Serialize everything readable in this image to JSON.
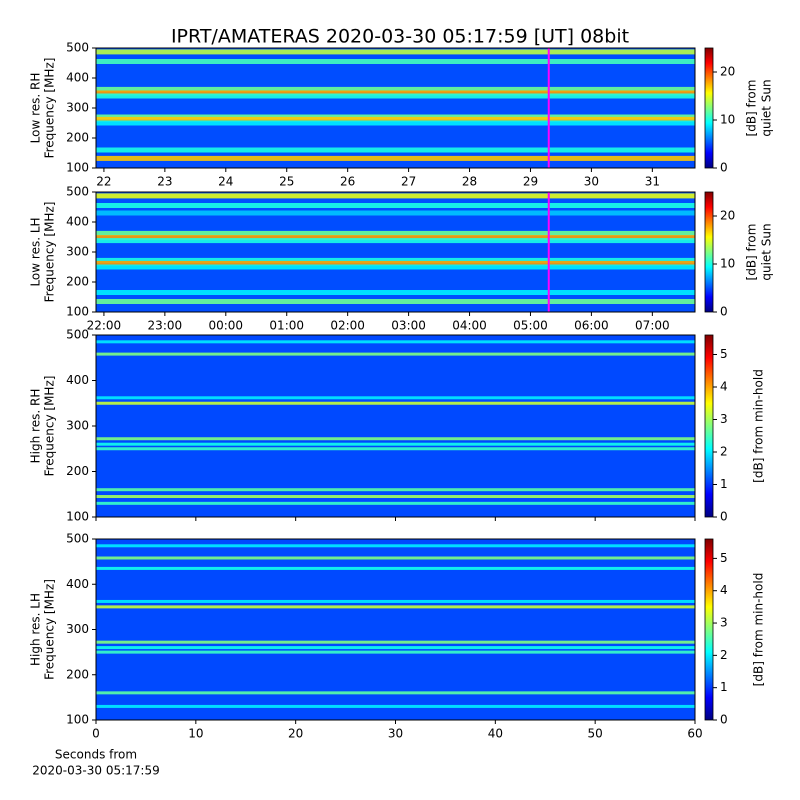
{
  "title": "IPRT/AMATERAS 2020-03-30 05:17:59 [UT]   08bit",
  "chart_data": [
    {
      "type": "heatmap",
      "ylabel": [
        "Low res. RH",
        "Frequency [MHz]"
      ],
      "colorbar_label": [
        "[dB] from",
        "quiet Sun"
      ],
      "xlim": [
        21.87,
        31.7
      ],
      "xticks": [
        22,
        23,
        24,
        25,
        26,
        27,
        28,
        29,
        30,
        31
      ],
      "ylim": [
        100,
        500
      ],
      "yticks": [
        100,
        200,
        300,
        400,
        500
      ],
      "clim": [
        0,
        25
      ],
      "cticks": [
        0,
        10,
        20
      ],
      "background": 5,
      "marker_x": 29.3,
      "marker_color": "#ff00ff",
      "bands": [
        {
          "freq": 487,
          "value": 14
        },
        {
          "freq": 455,
          "value": 11
        },
        {
          "freq": 362,
          "value": 12
        },
        {
          "freq": 350,
          "value": 18
        },
        {
          "freq": 340,
          "value": 10
        },
        {
          "freq": 270,
          "value": 12
        },
        {
          "freq": 262,
          "value": 17
        },
        {
          "freq": 250,
          "value": 9
        },
        {
          "freq": 160,
          "value": 10
        },
        {
          "freq": 132,
          "value": 17
        }
      ]
    },
    {
      "type": "heatmap",
      "ylabel": [
        "Low res. LH",
        "Frequency [MHz]"
      ],
      "colorbar_label": [
        "[dB] from",
        "quiet Sun"
      ],
      "xlim": [
        21.87,
        31.7
      ],
      "xticks": [
        {
          "value": 22,
          "label": "22:00"
        },
        {
          "value": 23,
          "label": "23:00"
        },
        {
          "value": 24,
          "label": "00:00"
        },
        {
          "value": 25,
          "label": "01:00"
        },
        {
          "value": 26,
          "label": "02:00"
        },
        {
          "value": 27,
          "label": "03:00"
        },
        {
          "value": 28,
          "label": "04:00"
        },
        {
          "value": 29,
          "label": "05:00"
        },
        {
          "value": 30,
          "label": "06:00"
        },
        {
          "value": 31,
          "label": "07:00"
        }
      ],
      "ylim": [
        100,
        500
      ],
      "yticks": [
        100,
        200,
        300,
        400,
        500
      ],
      "clim": [
        0,
        25
      ],
      "cticks": [
        0,
        10,
        20
      ],
      "background": 5,
      "marker_x": 29.3,
      "marker_color": "#ff00ff",
      "bands": [
        {
          "freq": 487,
          "value": 15
        },
        {
          "freq": 455,
          "value": 10
        },
        {
          "freq": 430,
          "value": 8
        },
        {
          "freq": 362,
          "value": 12
        },
        {
          "freq": 348,
          "value": 18
        },
        {
          "freq": 338,
          "value": 10
        },
        {
          "freq": 272,
          "value": 10
        },
        {
          "freq": 262,
          "value": 18
        },
        {
          "freq": 250,
          "value": 9
        },
        {
          "freq": 165,
          "value": 9
        },
        {
          "freq": 135,
          "value": 12
        }
      ]
    },
    {
      "type": "heatmap",
      "ylabel": [
        "High res. RH",
        "Frequency [MHz]"
      ],
      "colorbar_label": [
        "[dB] from min-hold"
      ],
      "xlim": [
        0,
        60
      ],
      "xticks": [
        0,
        10,
        20,
        30,
        40,
        50,
        60
      ],
      "xticklabels": false,
      "ylim": [
        100,
        500
      ],
      "yticks": [
        100,
        200,
        300,
        400,
        500
      ],
      "clim": [
        0,
        5.6
      ],
      "cticks": [
        0,
        1,
        2,
        3,
        4,
        5
      ],
      "background": 1.1,
      "bands": [
        {
          "freq": 485,
          "value": 2
        },
        {
          "freq": 458,
          "value": 2.8
        },
        {
          "freq": 362,
          "value": 2
        },
        {
          "freq": 350,
          "value": 3.2
        },
        {
          "freq": 272,
          "value": 2.8
        },
        {
          "freq": 260,
          "value": 2.2
        },
        {
          "freq": 250,
          "value": 2.4
        },
        {
          "freq": 160,
          "value": 2.6
        },
        {
          "freq": 145,
          "value": 3
        },
        {
          "freq": 130,
          "value": 2.4
        }
      ]
    },
    {
      "type": "heatmap",
      "ylabel": [
        "High res. LH",
        "Frequency [MHz]"
      ],
      "colorbar_label": [
        "[dB] from min-hold"
      ],
      "xlim": [
        0,
        60
      ],
      "xticks": [
        0,
        10,
        20,
        30,
        40,
        50,
        60
      ],
      "xlabel": [
        "Seconds from",
        "2020-03-30 05:17:59"
      ],
      "ylim": [
        100,
        500
      ],
      "yticks": [
        100,
        200,
        300,
        400,
        500
      ],
      "clim": [
        0,
        5.6
      ],
      "cticks": [
        0,
        1,
        2,
        3,
        4,
        5
      ],
      "background": 1.1,
      "bands": [
        {
          "freq": 485,
          "value": 2
        },
        {
          "freq": 458,
          "value": 2.8
        },
        {
          "freq": 435,
          "value": 2.2
        },
        {
          "freq": 362,
          "value": 2
        },
        {
          "freq": 350,
          "value": 3.2
        },
        {
          "freq": 272,
          "value": 2.8
        },
        {
          "freq": 260,
          "value": 2.2
        },
        {
          "freq": 250,
          "value": 2.4
        },
        {
          "freq": 160,
          "value": 2.6
        },
        {
          "freq": 130,
          "value": 2
        }
      ]
    }
  ]
}
